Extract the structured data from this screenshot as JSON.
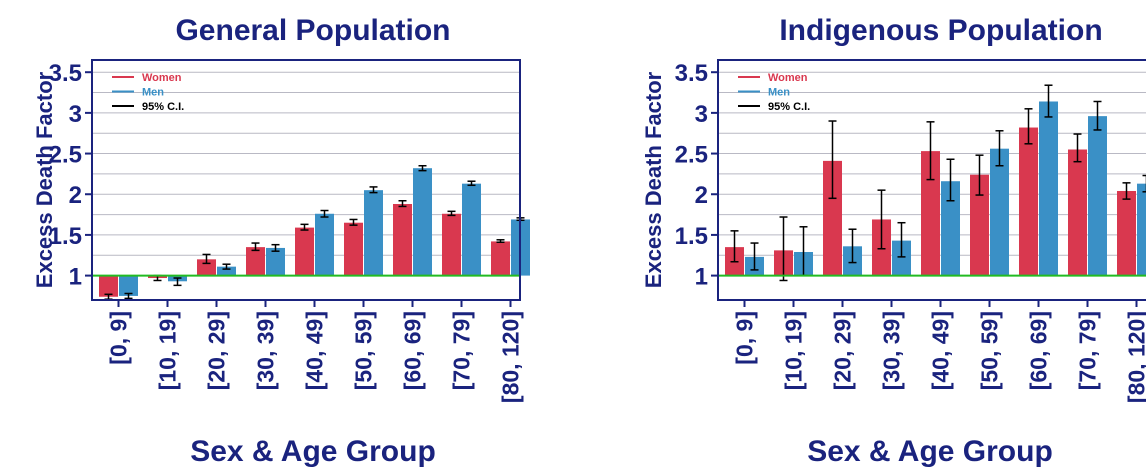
{
  "colors": {
    "women": "#d9384f",
    "men": "#3a90c6",
    "ci": "#000000",
    "baseline": "#22bb22",
    "frame": "#1a237e",
    "text": "#1a237e"
  },
  "chart_data": [
    {
      "type": "bar",
      "title": "General Population",
      "xlabel": "Sex & Age Group",
      "ylabel": "Excess Death Factor",
      "categories": [
        "[0, 9]",
        "[10, 19]",
        "[20, 29]",
        "[30, 39]",
        "[40, 49]",
        "[50, 59]",
        "[60, 69]",
        "[70, 79]",
        "[80, 120]"
      ],
      "yticks": [
        "1",
        "1.5",
        "2",
        "2.5",
        "3",
        "3.5"
      ],
      "ylim": [
        0.7,
        3.65
      ],
      "baseline": 1,
      "grid": true,
      "legend_position": "top-left",
      "legend": [
        "Women",
        "Men",
        "95% C.I."
      ],
      "series": [
        {
          "name": "Women",
          "values": [
            0.74,
            0.97,
            1.2,
            1.35,
            1.59,
            1.65,
            1.88,
            1.76,
            1.42
          ],
          "ci_low": [
            0.71,
            0.94,
            1.15,
            1.31,
            1.56,
            1.62,
            1.85,
            1.74,
            1.41
          ],
          "ci_high": [
            0.77,
            1.0,
            1.26,
            1.4,
            1.63,
            1.69,
            1.92,
            1.79,
            1.44
          ]
        },
        {
          "name": "Men",
          "values": [
            0.75,
            0.93,
            1.11,
            1.34,
            1.76,
            2.05,
            2.32,
            2.13,
            1.69
          ],
          "ci_low": [
            0.72,
            0.88,
            1.08,
            1.3,
            1.72,
            2.02,
            2.29,
            2.11,
            1.68
          ],
          "ci_high": [
            0.78,
            0.97,
            1.14,
            1.38,
            1.8,
            2.09,
            2.35,
            2.16,
            1.71
          ]
        }
      ]
    },
    {
      "type": "bar",
      "title": "Indigenous Population",
      "xlabel": "Sex & Age Group",
      "ylabel": "Excess Death Factor",
      "categories": [
        "[0, 9]",
        "[10, 19]",
        "[20, 29]",
        "[30, 39]",
        "[40, 49]",
        "[50, 59]",
        "[60, 69]",
        "[70, 79]",
        "[80, 120]"
      ],
      "yticks": [
        "1",
        "1.5",
        "2",
        "2.5",
        "3",
        "3.5"
      ],
      "ylim": [
        0.7,
        3.65
      ],
      "baseline": 1,
      "grid": true,
      "legend_position": "top-left",
      "legend": [
        "Women",
        "Men",
        "95% C.I."
      ],
      "series": [
        {
          "name": "Women",
          "values": [
            1.35,
            1.31,
            2.41,
            1.69,
            2.53,
            2.24,
            2.82,
            2.55,
            2.04
          ],
          "ci_low": [
            1.17,
            0.94,
            1.95,
            1.33,
            2.18,
            1.99,
            2.62,
            2.4,
            1.94
          ],
          "ci_high": [
            1.55,
            1.72,
            2.9,
            2.05,
            2.89,
            2.48,
            3.05,
            2.74,
            2.14
          ]
        },
        {
          "name": "Men",
          "values": [
            1.23,
            1.29,
            1.36,
            1.43,
            2.16,
            2.56,
            3.14,
            2.96,
            2.13
          ],
          "ci_low": [
            1.07,
            1.0,
            1.16,
            1.23,
            1.92,
            2.35,
            2.95,
            2.79,
            2.03
          ],
          "ci_high": [
            1.4,
            1.6,
            1.57,
            1.65,
            2.43,
            2.78,
            3.34,
            3.14,
            2.23
          ]
        }
      ]
    }
  ]
}
